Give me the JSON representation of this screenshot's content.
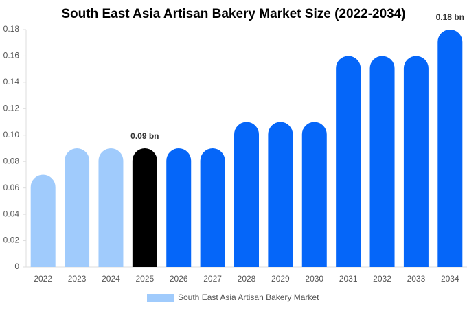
{
  "chart_data": {
    "type": "bar",
    "title": "South East Asia Artisan Bakery Market Size (2022-2034)",
    "categories": [
      "2022",
      "2023",
      "2024",
      "2025",
      "2026",
      "2027",
      "2028",
      "2029",
      "2030",
      "2031",
      "2032",
      "2033",
      "2034"
    ],
    "series": [
      {
        "name": "South East Asia Artisan Bakery Market",
        "color": "#a0cbfc",
        "values": [
          0.07,
          0.09,
          0.09,
          0.09,
          0.09,
          0.09,
          0.11,
          0.11,
          0.11,
          0.16,
          0.16,
          0.16,
          0.18
        ],
        "value_labels": [
          null,
          null,
          null,
          "0.09 bn",
          null,
          null,
          null,
          null,
          null,
          null,
          null,
          null,
          "0.18 bn"
        ],
        "colors": [
          "#a0cbfc",
          "#a0cbfc",
          "#a0cbfc",
          "#000000",
          "#0566f9",
          "#0566f9",
          "#0566f9",
          "#0566f9",
          "#0566f9",
          "#0566f9",
          "#0566f9",
          "#0566f9",
          "#0566f9"
        ]
      }
    ],
    "ylim": [
      0,
      0.18
    ],
    "yticks": [
      0,
      0.02,
      0.04,
      0.06,
      0.08,
      {
        "value": 0.1,
        "label": "0.10"
      },
      0.12,
      0.14,
      0.16,
      0.18
    ],
    "grid": false,
    "legend": "bottom"
  }
}
